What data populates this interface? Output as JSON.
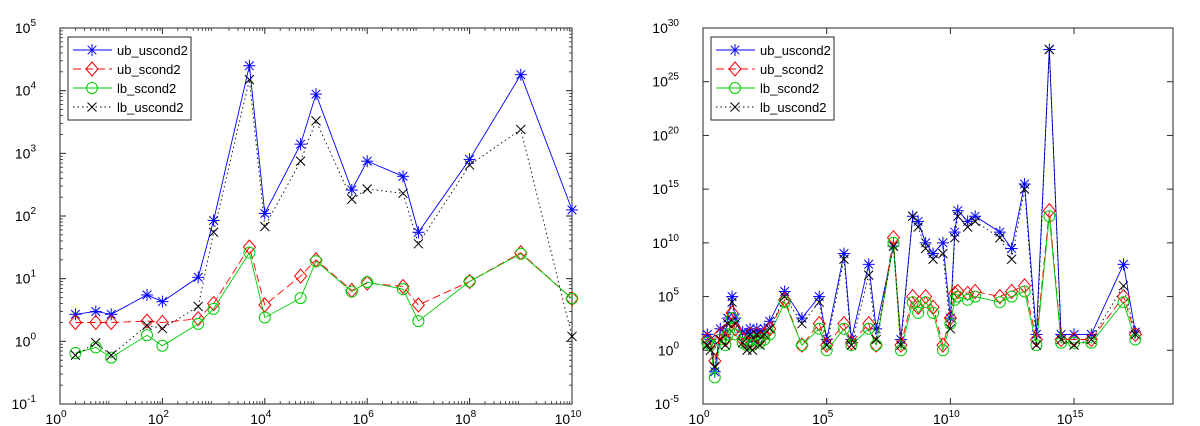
{
  "chart_data": [
    {
      "type": "line",
      "xscale": "log",
      "yscale": "log",
      "xlim": [
        1,
        10000000000
      ],
      "ylim": [
        0.1,
        100000
      ],
      "grid": false,
      "legend": {
        "placement": "top-left"
      },
      "x_ticks": [
        "10^0",
        "10^2",
        "10^4",
        "10^6",
        "10^8",
        "10^10"
      ],
      "y_ticks": [
        "10^-1",
        "10^0",
        "10^1",
        "10^2",
        "10^3",
        "10^4",
        "10^5"
      ],
      "series": [
        {
          "name": "ub_uscond2",
          "color": "#0000ff",
          "line": "solid",
          "marker": "asterisk",
          "x": [
            2,
            5,
            10,
            50,
            100,
            500,
            1000,
            5000,
            10000,
            50000,
            100000,
            500000,
            1000000,
            5000000,
            10000000,
            100000000,
            1000000000,
            10000000000
          ],
          "y": [
            2.7,
            3,
            2.7,
            5.5,
            4.3,
            10.5,
            85,
            25000,
            110,
            1400,
            8800,
            260,
            750,
            430,
            55,
            800,
            18000,
            125
          ]
        },
        {
          "name": "ub_scond2",
          "color": "#ff0000",
          "line": "dashed",
          "marker": "diamond",
          "x": [
            2,
            5,
            10,
            50,
            100,
            500,
            1000,
            5000,
            10000,
            50000,
            100000,
            500000,
            1000000,
            5000000,
            10000000,
            100000000,
            1000000000,
            10000000000
          ],
          "y": [
            2,
            2,
            2,
            2.1,
            2,
            2.3,
            4,
            32,
            3.8,
            11,
            20,
            6.5,
            8.5,
            7.5,
            3.8,
            9,
            26,
            4.8
          ]
        },
        {
          "name": "lb_scond2",
          "color": "#00cc00",
          "line": "solid",
          "marker": "circle",
          "x": [
            2,
            5,
            10,
            50,
            100,
            500,
            1000,
            5000,
            10000,
            50000,
            100000,
            500000,
            1000000,
            5000000,
            10000000,
            100000000,
            1000000000,
            10000000000
          ],
          "y": [
            0.65,
            0.8,
            0.55,
            1.25,
            0.85,
            1.9,
            3.3,
            26,
            2.4,
            4.9,
            19,
            6.2,
            8.8,
            6.8,
            2.1,
            9,
            25,
            4.8
          ]
        },
        {
          "name": "lb_uscond2",
          "color": "#000000",
          "line": "dotted",
          "marker": "x",
          "x": [
            2,
            5,
            10,
            50,
            100,
            500,
            1000,
            5000,
            10000,
            50000,
            100000,
            500000,
            1000000,
            5000000,
            10000000,
            100000000,
            1000000000,
            10000000000
          ],
          "y": [
            0.6,
            0.95,
            0.6,
            1.8,
            1.6,
            3.6,
            55,
            15000,
            68,
            750,
            3300,
            185,
            270,
            230,
            36,
            650,
            2400,
            1.2
          ]
        }
      ]
    },
    {
      "type": "line",
      "xscale": "log",
      "yscale": "log",
      "xlim": [
        1,
        1e+19
      ],
      "ylim": [
        1e-05,
        1e+30
      ],
      "grid": false,
      "legend": {
        "placement": "top-left"
      },
      "x_ticks": [
        "10^0",
        "10^5",
        "10^10",
        "10^15"
      ],
      "y_ticks": [
        "10^-5",
        "10^0",
        "10^5",
        "10^10",
        "10^15",
        "10^20",
        "10^25",
        "10^30"
      ],
      "series": [
        {
          "name": "ub_uscond2",
          "color": "#0000ff",
          "line": "solid",
          "marker": "asterisk",
          "x": [
            1.5,
            2,
            3,
            5,
            8,
            10,
            15,
            20,
            40,
            60,
            80,
            100,
            150,
            200,
            300,
            500,
            2000,
            10000,
            50000,
            100000,
            500000,
            1000000,
            5000000,
            10000000,
            50000000,
            100000000,
            300000000,
            500000000,
            1000000000,
            2000000000,
            5000000000,
            10000000000,
            15000000000,
            20000000000,
            50000000000,
            100000000000,
            1000000000000,
            3000000000000,
            10000000000000,
            30000000000000,
            100000000000000,
            300000000000000,
            1000000000000000,
            5000000000000000,
            100000000000000000,
            300000000000000000
          ],
          "y": [
            30,
            10,
            0.01,
            100,
            30,
            1000,
            100000,
            1000,
            50,
            30,
            100,
            10,
            100,
            30,
            100,
            500,
            300000,
            1000,
            100000,
            10,
            1000000000,
            10,
            100000000,
            100,
            5000000000,
            10,
            3000000000000,
            1000000000000,
            10000000000,
            1000000000,
            10000000000,
            1000,
            100000000000,
            10000000000000,
            1000000000000,
            3000000000000,
            100000000000,
            3000000000,
            3000000000000000,
            30,
            1e+28,
            30,
            30,
            30,
            100000000,
            50
          ]
        },
        {
          "name": "ub_scond2",
          "color": "#ff0000",
          "line": "dashed",
          "marker": "diamond",
          "x": [
            1.5,
            2,
            3,
            5,
            8,
            10,
            15,
            20,
            40,
            60,
            80,
            100,
            150,
            200,
            300,
            500,
            2000,
            10000,
            50000,
            100000,
            500000,
            1000000,
            5000000,
            10000000,
            50000000,
            100000000,
            300000000,
            500000000,
            1000000000,
            2000000000,
            5000000000,
            10000000000,
            15000000000,
            20000000000,
            50000000000,
            100000000000,
            1000000000000,
            3000000000000,
            10000000000000,
            30000000000000,
            100000000000000,
            300000000000000,
            1000000000000000,
            5000000000000000,
            100000000000000000,
            300000000000000000
          ],
          "y": [
            10,
            5,
            0.1,
            30,
            10,
            100,
            3000,
            100,
            10,
            5,
            30,
            5,
            30,
            10,
            30,
            100,
            50000,
            3,
            300,
            3,
            300,
            5,
            300,
            3,
            30000000000,
            3,
            100000,
            10000,
            100000,
            10000,
            3,
            1000,
            200000,
            300000,
            200000,
            300000,
            100000,
            300000,
            1000000,
            10,
            10000000000000,
            10,
            10,
            10,
            100000,
            30
          ]
        },
        {
          "name": "lb_scond2",
          "color": "#00cc00",
          "line": "solid",
          "marker": "circle",
          "x": [
            1.5,
            2,
            3,
            5,
            8,
            10,
            15,
            20,
            40,
            60,
            80,
            100,
            150,
            200,
            300,
            500,
            2000,
            10000,
            50000,
            100000,
            500000,
            1000000,
            5000000,
            10000000,
            50000000,
            100000000,
            300000000,
            500000000,
            1000000000,
            2000000000,
            5000000000,
            10000000000,
            15000000000,
            20000000000,
            50000000000,
            100000000000,
            1000000000000,
            3000000000000,
            10000000000000,
            30000000000000,
            100000000000000,
            300000000000000,
            1000000000000000,
            5000000000000000,
            100000000000000000,
            300000000000000000
          ],
          "y": [
            5,
            3,
            0.003,
            10,
            3,
            30,
            1000,
            30,
            5,
            3,
            10,
            3,
            10,
            5,
            10,
            30,
            30000,
            3,
            100,
            1,
            100,
            3,
            100,
            3,
            10000000000,
            1,
            30000,
            3000,
            30000,
            3000,
            1,
            300,
            50000,
            100000,
            50000,
            100000,
            30000,
            100000,
            300000,
            3,
            3000000000000,
            5,
            5,
            5,
            30000,
            10
          ]
        },
        {
          "name": "lb_uscond2",
          "color": "#000000",
          "line": "dotted",
          "marker": "x",
          "x": [
            1.5,
            2,
            3,
            5,
            8,
            10,
            15,
            20,
            40,
            60,
            80,
            100,
            150,
            200,
            300,
            500,
            2000,
            10000,
            50000,
            100000,
            500000,
            1000000,
            5000000,
            10000000,
            50000000,
            100000000,
            300000000,
            500000000,
            1000000000,
            2000000000,
            5000000000,
            10000000000,
            15000000000,
            20000000000,
            50000000000,
            100000000000,
            1000000000000,
            3000000000000,
            10000000000000,
            30000000000000,
            100000000000000,
            300000000000000,
            1000000000000000,
            5000000000000000,
            100000000000000000,
            300000000000000000
          ],
          "y": [
            3,
            1,
            0.03,
            10,
            3,
            300,
            30000,
            300,
            5,
            1,
            30,
            1,
            30,
            3,
            30,
            100,
            100000,
            300,
            30000,
            3,
            300000000,
            3,
            10000000,
            10,
            5000000000,
            3,
            3000000000000,
            300000000000,
            3000000000,
            300000000,
            1000000000,
            100,
            30000000000,
            3000000000000,
            300000000000,
            1000000000000,
            30000000000,
            300000000,
            1000000000000000,
            3,
            1e+28,
            10,
            3,
            10,
            1000000,
            30
          ]
        }
      ]
    }
  ]
}
